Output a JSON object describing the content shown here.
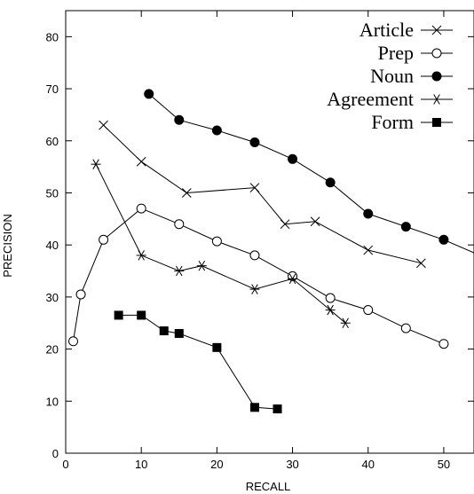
{
  "chart_data": {
    "type": "line",
    "title": "",
    "xlabel": "RECALL",
    "ylabel": "PRECISION",
    "xlim": [
      0,
      54
    ],
    "ylim": [
      0,
      85
    ],
    "xticks": [
      0,
      10,
      20,
      30,
      40,
      50
    ],
    "yticks": [
      0,
      10,
      20,
      30,
      40,
      50,
      60,
      70,
      80
    ],
    "grid": false,
    "legend_position": "top-right",
    "series": [
      {
        "name": "Article",
        "marker": "x",
        "points": [
          [
            5,
            63
          ],
          [
            10,
            56
          ],
          [
            16,
            50
          ],
          [
            25,
            51
          ],
          [
            29,
            44
          ],
          [
            33,
            44.5
          ],
          [
            40,
            39
          ],
          [
            47,
            36.5
          ]
        ]
      },
      {
        "name": "Prep",
        "marker": "open-circle",
        "points": [
          [
            1,
            21.5
          ],
          [
            2,
            30.5
          ],
          [
            5,
            41
          ],
          [
            10,
            47
          ],
          [
            15,
            44
          ],
          [
            20,
            40.7
          ],
          [
            25,
            38
          ],
          [
            30,
            34
          ],
          [
            35,
            29.8
          ],
          [
            40,
            27.5
          ],
          [
            45,
            24
          ],
          [
            50,
            21
          ]
        ]
      },
      {
        "name": "Noun",
        "marker": "filled-circle",
        "points": [
          [
            11,
            69
          ],
          [
            15,
            64
          ],
          [
            20,
            62
          ],
          [
            25,
            59.7
          ],
          [
            30,
            56.5
          ],
          [
            35,
            52
          ],
          [
            40,
            46
          ],
          [
            45,
            43.5
          ],
          [
            50,
            41
          ],
          [
            54,
            38.5
          ]
        ]
      },
      {
        "name": "Agreement",
        "marker": "asterisk",
        "points": [
          [
            4,
            55.5
          ],
          [
            10,
            38
          ],
          [
            15,
            35
          ],
          [
            18,
            36
          ],
          [
            25,
            31.5
          ],
          [
            30,
            33.5
          ],
          [
            35,
            27.5
          ],
          [
            37,
            25
          ]
        ]
      },
      {
        "name": "Form",
        "marker": "filled-square",
        "points": [
          [
            7,
            26.5
          ],
          [
            10,
            26.5
          ],
          [
            13,
            23.5
          ],
          [
            15,
            23
          ],
          [
            20,
            20.3
          ],
          [
            25,
            8.8
          ],
          [
            28,
            8.5
          ]
        ]
      }
    ]
  }
}
